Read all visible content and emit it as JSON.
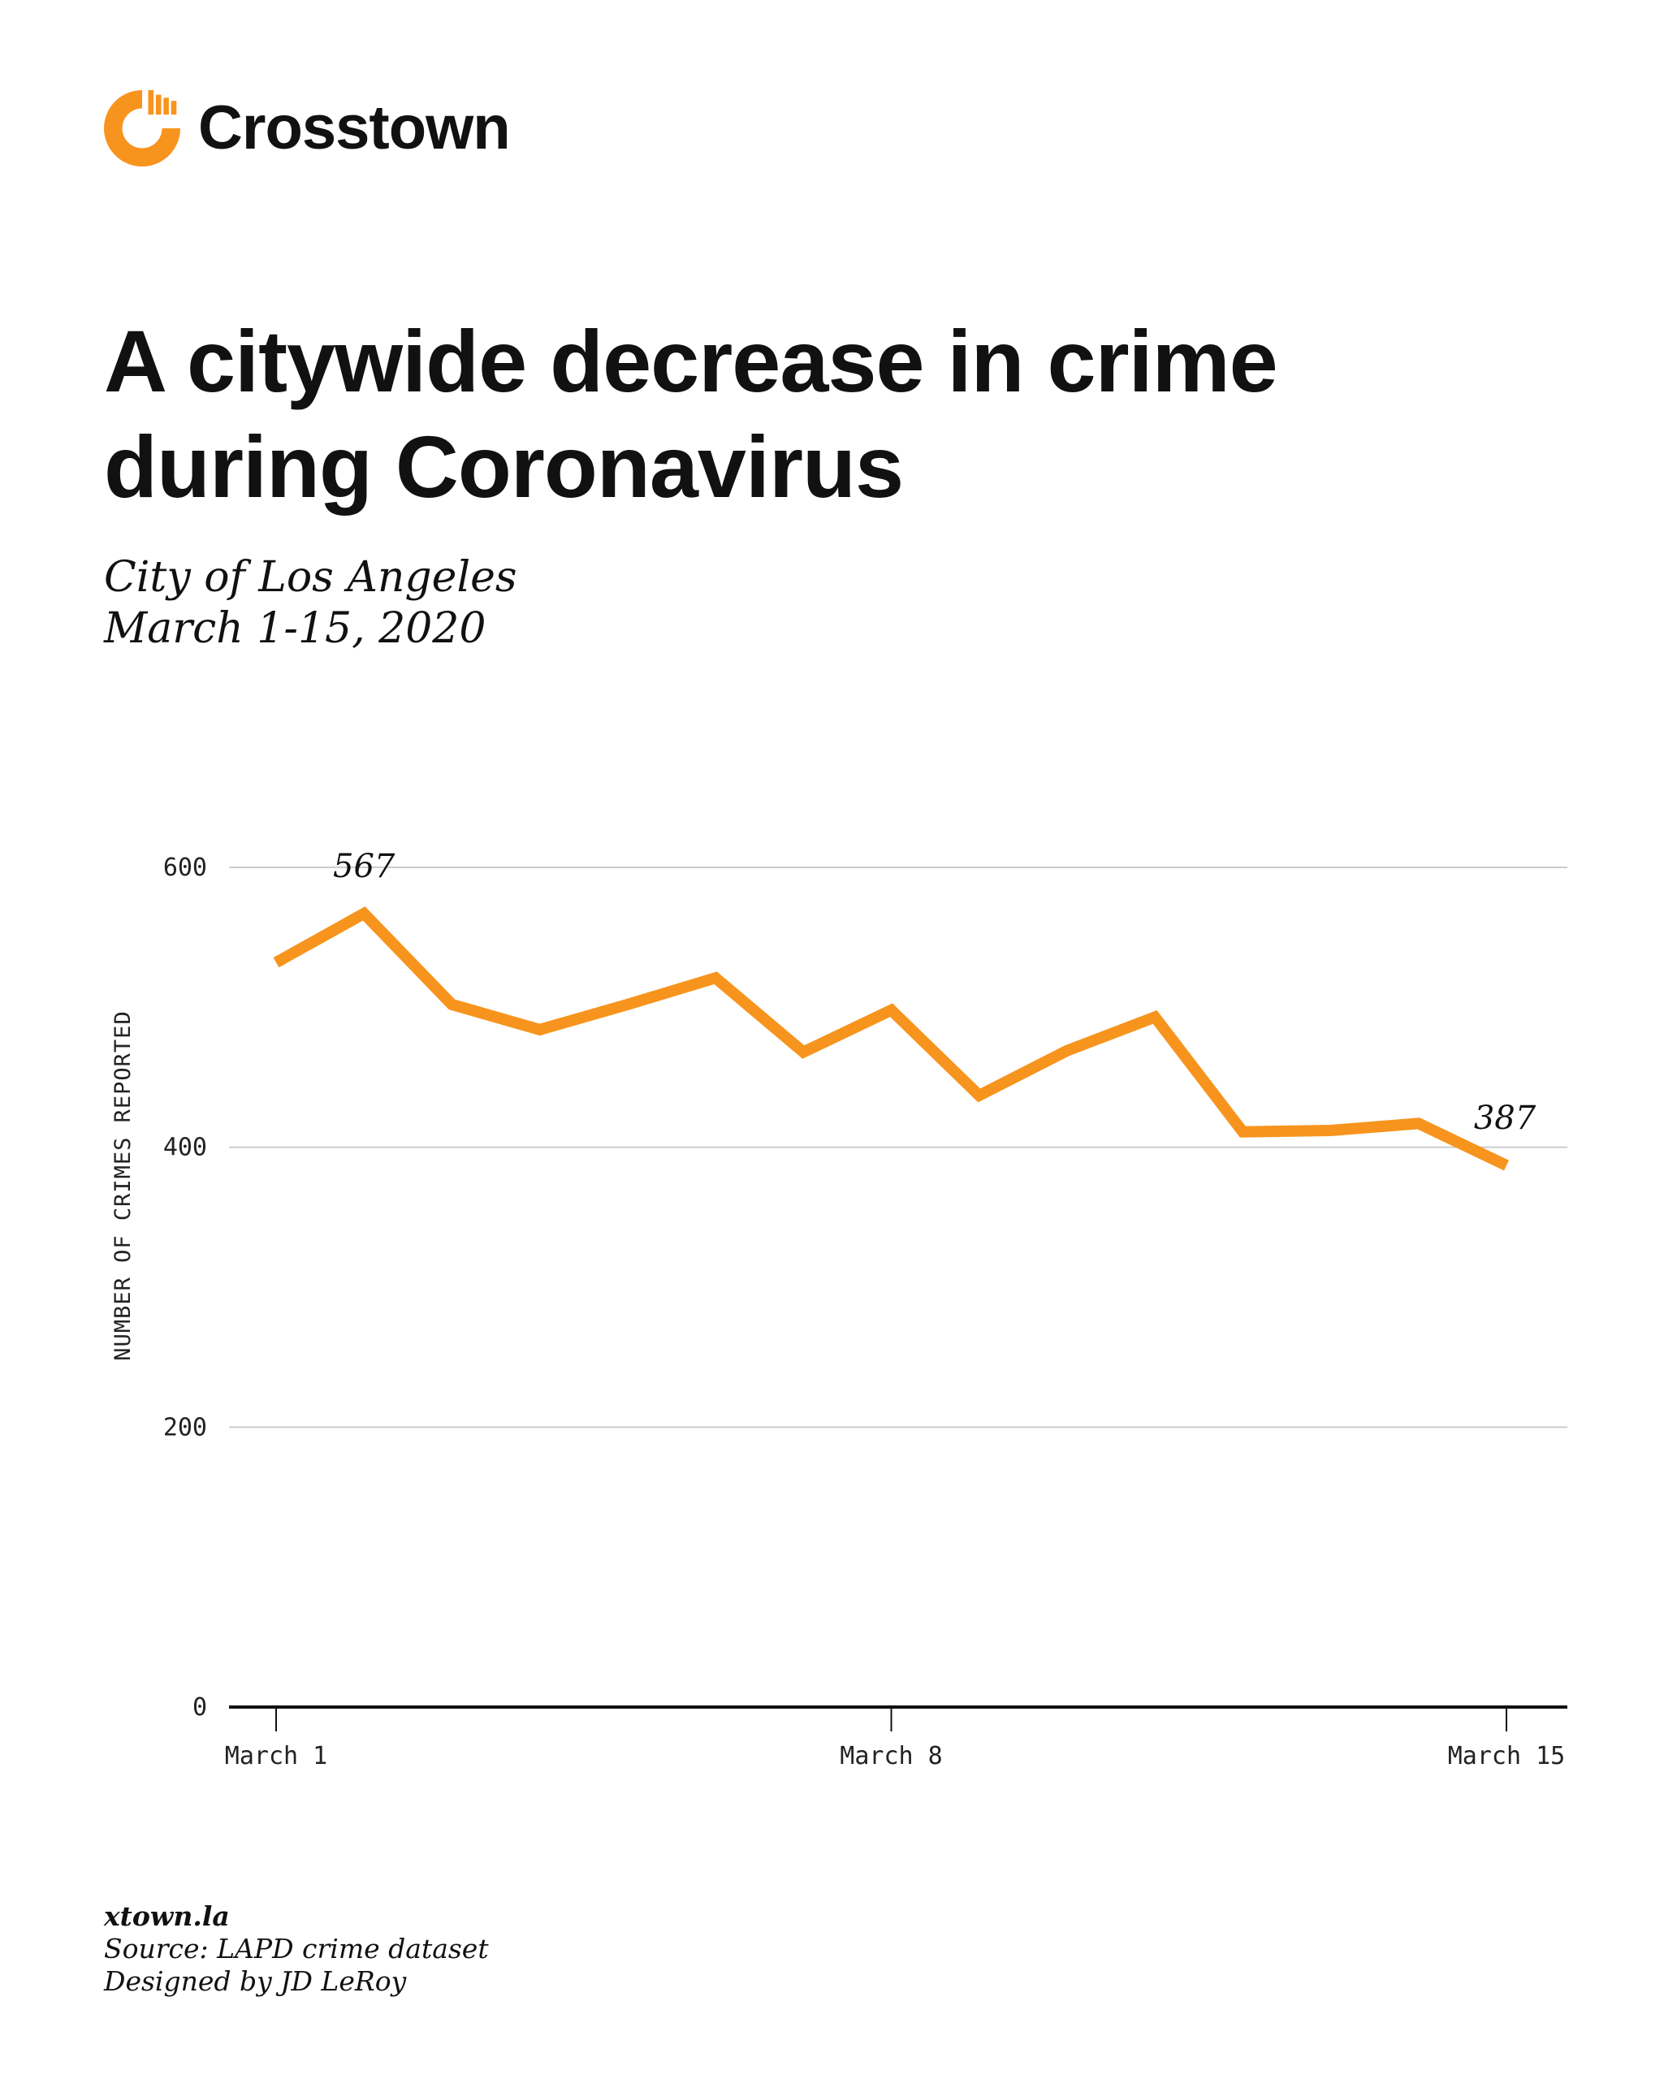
{
  "brand": {
    "name": "Crosstown",
    "color": "#F7941D",
    "icon": "crosstown-logo-icon"
  },
  "title": "A citywide decrease in crime during Coronavirus",
  "subtitle": {
    "line1": "City of Los Angeles",
    "line2": "March 1-15, 2020"
  },
  "chart_data": {
    "type": "line",
    "ylabel": "NUMBER OF CRIMES REPORTED",
    "xlabel": "",
    "ylim": [
      0,
      600
    ],
    "yticks": [
      "0",
      "200",
      "400",
      "600"
    ],
    "xticks": [
      {
        "day": 1,
        "label": "March 1"
      },
      {
        "day": 8,
        "label": "March 8"
      },
      {
        "day": 15,
        "label": "March 15"
      }
    ],
    "x": [
      1,
      2,
      3,
      4,
      5,
      6,
      7,
      8,
      9,
      10,
      11,
      12,
      13,
      14,
      15
    ],
    "values": [
      532,
      567,
      502,
      484,
      502,
      521,
      468,
      498,
      437,
      469,
      493,
      411,
      412,
      417,
      387
    ],
    "annotations": [
      {
        "day": 2,
        "text": "567"
      },
      {
        "day": 15,
        "text": "387"
      }
    ],
    "grid": true,
    "line_color": "#F7941D"
  },
  "footer": {
    "site": "xtown.la",
    "source": "Source: LAPD crime dataset",
    "credit": "Designed by JD LeRoy"
  }
}
